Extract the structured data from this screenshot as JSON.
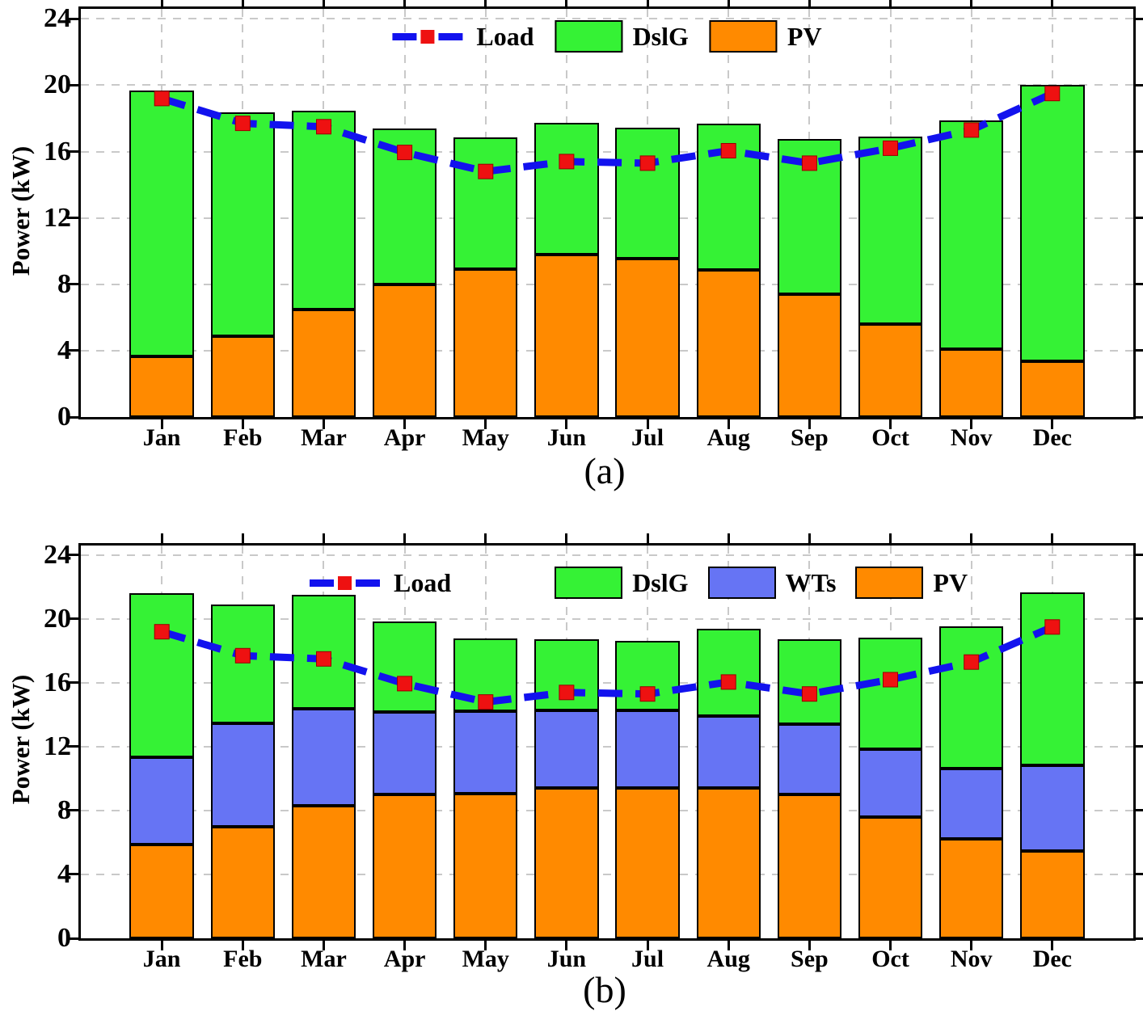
{
  "colors": {
    "dslg": "#35F235",
    "wts": "#6674F4",
    "pv": "#FF8A00",
    "load_line": "#1212EE",
    "load_marker": "#EE1111",
    "marker_edge": "#990000",
    "grid": "#C9C9C9",
    "axis": "#000000"
  },
  "chart_data": [
    {
      "type": "bar",
      "stacked": true,
      "caption": "(a)",
      "ylabel": "Power (kW)",
      "xlabel": "",
      "categories": [
        "Jan",
        "Feb",
        "Mar",
        "Apr",
        "May",
        "Jun",
        "Jul",
        "Aug",
        "Sep",
        "Oct",
        "Nov",
        "Dec"
      ],
      "yticks": [
        0,
        4,
        8,
        12,
        16,
        20,
        24
      ],
      "ylim": [
        0,
        24.6
      ],
      "grid": true,
      "legend_position": "top-center",
      "legend": [
        "Load",
        "DslG",
        "PV"
      ],
      "series": [
        {
          "name": "PV",
          "type": "bar",
          "color_key": "pv",
          "values": [
            3.65,
            4.85,
            6.5,
            8.0,
            8.9,
            9.8,
            9.55,
            8.85,
            7.4,
            5.6,
            4.1,
            3.35
          ]
        },
        {
          "name": "DslG",
          "type": "bar",
          "color_key": "dslg",
          "values": [
            16.05,
            13.5,
            11.95,
            9.4,
            7.95,
            7.95,
            7.9,
            8.85,
            9.35,
            11.3,
            13.8,
            16.65
          ]
        },
        {
          "name": "Load",
          "type": "line",
          "color_key": "load_line",
          "values": [
            19.2,
            17.7,
            17.5,
            15.95,
            14.8,
            15.4,
            15.3,
            16.05,
            15.3,
            16.2,
            17.3,
            19.5
          ]
        }
      ]
    },
    {
      "type": "bar",
      "stacked": true,
      "caption": "(b)",
      "ylabel": "Power (kW)",
      "xlabel": "",
      "categories": [
        "Jan",
        "Feb",
        "Mar",
        "Apr",
        "May",
        "Jun",
        "Jul",
        "Aug",
        "Sep",
        "Oct",
        "Nov",
        "Dec"
      ],
      "yticks": [
        0,
        4,
        8,
        12,
        16,
        20,
        24
      ],
      "ylim": [
        0,
        24.6
      ],
      "grid": true,
      "legend_position": "top-center",
      "legend": [
        "Load",
        "DslG",
        "WTs",
        "PV"
      ],
      "series": [
        {
          "name": "PV",
          "type": "bar",
          "color_key": "pv",
          "values": [
            5.85,
            7.0,
            8.3,
            9.0,
            9.05,
            9.4,
            9.4,
            9.4,
            9.0,
            7.6,
            6.25,
            5.45
          ]
        },
        {
          "name": "WTs",
          "type": "bar",
          "color_key": "wts",
          "values": [
            5.5,
            6.45,
            6.1,
            5.15,
            5.15,
            4.9,
            4.9,
            4.5,
            4.4,
            4.25,
            4.4,
            5.4
          ]
        },
        {
          "name": "DslG",
          "type": "bar",
          "color_key": "dslg",
          "values": [
            10.25,
            7.45,
            7.1,
            5.7,
            4.6,
            4.45,
            4.35,
            5.5,
            5.35,
            7.0,
            8.9,
            10.8
          ]
        },
        {
          "name": "Load",
          "type": "line",
          "color_key": "load_line",
          "values": [
            19.2,
            17.7,
            17.5,
            15.95,
            14.8,
            15.4,
            15.3,
            16.05,
            15.3,
            16.2,
            17.3,
            19.5
          ]
        }
      ]
    }
  ]
}
